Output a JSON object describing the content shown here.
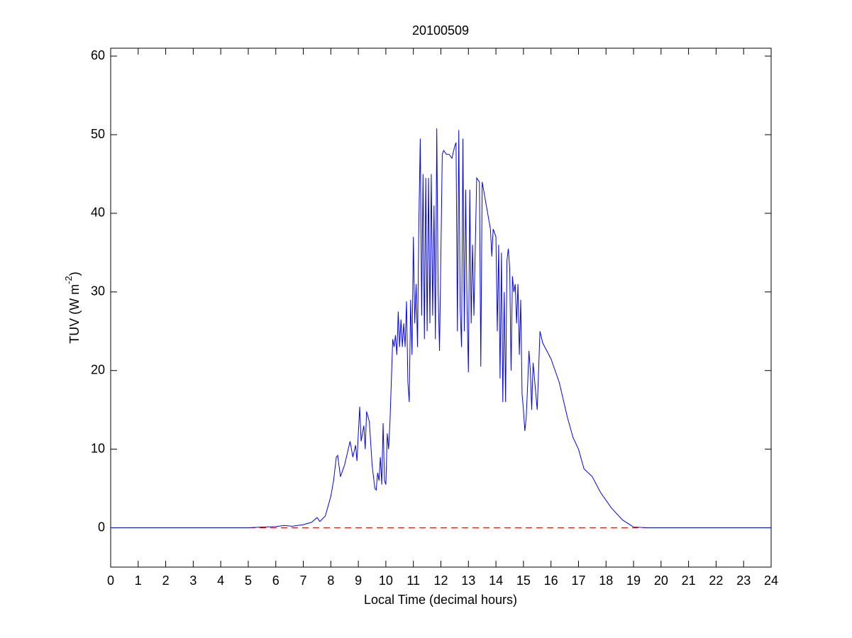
{
  "chart_data": {
    "type": "line",
    "title": "20100509",
    "xlabel": "Local Time (decimal hours)",
    "ylabel": [
      "TUV (W m",
      "-2",
      ")"
    ],
    "xlim": [
      0,
      24
    ],
    "xticks": [
      0,
      1,
      2,
      3,
      4,
      5,
      6,
      7,
      8,
      9,
      10,
      11,
      12,
      13,
      14,
      15,
      16,
      17,
      18,
      19,
      20,
      21,
      22,
      23,
      24
    ],
    "ylim": [
      -5,
      61
    ],
    "yticks": [
      0,
      10,
      20,
      30,
      40,
      50,
      60
    ],
    "reference_line": {
      "value": 0,
      "color": "#ff0000",
      "style": "dashed"
    },
    "series": [
      {
        "color": "#0000ff",
        "x": [
          0,
          5,
          5.5,
          6,
          6.3,
          6.6,
          7,
          7.3,
          7.5,
          7.6,
          7.8,
          8.0,
          8.1,
          8.2,
          8.25,
          8.35,
          8.5,
          8.6,
          8.7,
          8.8,
          8.9,
          8.95,
          9.0,
          9.05,
          9.1,
          9.2,
          9.25,
          9.3,
          9.4,
          9.5,
          9.6,
          9.65,
          9.7,
          9.75,
          9.8,
          9.85,
          9.9,
          9.95,
          10.0,
          10.05,
          10.1,
          10.15,
          10.25,
          10.3,
          10.35,
          10.4,
          10.45,
          10.5,
          10.55,
          10.6,
          10.65,
          10.7,
          10.75,
          10.8,
          10.85,
          10.9,
          10.95,
          11.0,
          11.05,
          11.1,
          11.15,
          11.2,
          11.25,
          11.3,
          11.35,
          11.4,
          11.45,
          11.5,
          11.55,
          11.6,
          11.65,
          11.7,
          11.75,
          11.8,
          11.85,
          11.9,
          11.95,
          12.0,
          12.05,
          12.1,
          12.2,
          12.3,
          12.4,
          12.5,
          12.55,
          12.6,
          12.65,
          12.7,
          12.75,
          12.8,
          12.85,
          12.9,
          12.95,
          13.0,
          13.05,
          13.1,
          13.15,
          13.2,
          13.3,
          13.4,
          13.45,
          13.5,
          13.6,
          13.7,
          13.8,
          13.85,
          13.9,
          14.0,
          14.05,
          14.1,
          14.15,
          14.2,
          14.25,
          14.3,
          14.35,
          14.4,
          14.45,
          14.5,
          14.55,
          14.6,
          14.65,
          14.7,
          14.75,
          14.8,
          14.85,
          14.9,
          14.95,
          15.0,
          15.05,
          15.1,
          15.15,
          15.2,
          15.25,
          15.3,
          15.35,
          15.5,
          15.6,
          15.7,
          16.0,
          16.3,
          16.6,
          16.8,
          17.0,
          17.2,
          17.5,
          17.8,
          18.2,
          18.6,
          19.0,
          19.5,
          24
        ],
        "values": [
          0,
          0,
          0.1,
          0.15,
          0.3,
          0.2,
          0.4,
          0.7,
          1.3,
          0.8,
          1.5,
          4,
          6,
          9,
          9.2,
          6.5,
          8,
          9.5,
          11,
          9,
          10.5,
          8.5,
          12,
          15.4,
          11,
          13,
          10,
          14.8,
          13.5,
          8,
          5,
          4.8,
          7,
          6,
          9,
          5.5,
          13.3,
          6,
          5.5,
          12,
          10,
          13.5,
          24,
          23,
          24.5,
          22,
          27.5,
          23,
          26.5,
          23,
          26,
          23,
          28.8,
          18.5,
          16,
          29,
          22,
          37,
          26,
          31,
          23,
          39,
          49.5,
          27,
          45,
          24,
          44.5,
          25,
          44.5,
          26,
          45,
          27,
          41,
          24,
          50.8,
          30,
          22.5,
          35,
          47.5,
          48,
          47.5,
          47.5,
          47,
          48.5,
          49,
          25,
          50.6,
          28,
          23,
          49.5,
          25,
          43,
          28,
          19.8,
          43,
          26,
          36,
          27,
          44.5,
          44,
          20.5,
          44,
          42,
          40,
          38,
          34.5,
          38,
          37,
          25,
          36,
          19,
          35,
          16,
          30,
          16,
          34,
          35.5,
          33,
          20,
          32,
          30,
          31,
          26,
          31,
          22,
          29,
          17,
          15,
          12.3,
          14,
          18,
          22.5,
          20,
          15,
          21,
          15,
          25,
          23.5,
          21.5,
          18.5,
          14,
          11.5,
          10,
          7.5,
          6.5,
          4.5,
          2.5,
          1,
          0.1,
          0,
          0
        ]
      }
    ]
  }
}
